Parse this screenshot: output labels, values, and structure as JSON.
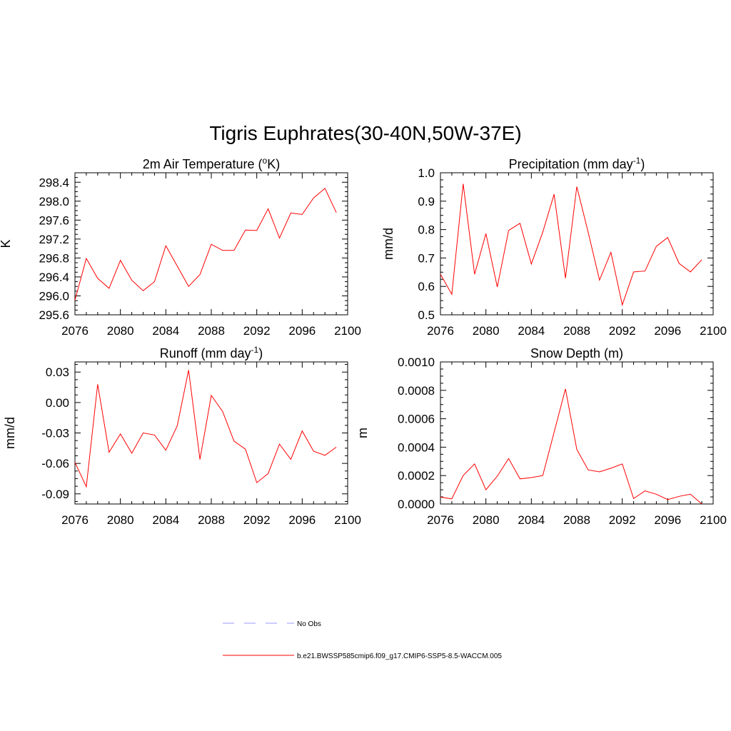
{
  "title": "Tigris Euphrates(30-40N,50W-37E)",
  "colors": {
    "series": "#ff0000",
    "obs": "#9999ff",
    "axis": "#000000"
  },
  "legend": [
    {
      "label": "No Obs",
      "style": "dashed",
      "color": "#9999ff"
    },
    {
      "label": "b.e21.BWSSP585cmip6.f09_g17.CMIP6-SSP5-8.5-WACCM.005",
      "style": "solid",
      "color": "#ff0000"
    }
  ],
  "chart_data": [
    {
      "type": "line",
      "title": "2m Air Temperature (°K)",
      "title_parts": [
        "2m Air Temperature (",
        "o",
        "K)"
      ],
      "ylabel": "K",
      "xlim": [
        2076,
        2100
      ],
      "ylim": [
        295.6,
        298.6
      ],
      "xticks": [
        2076,
        2080,
        2084,
        2088,
        2092,
        2096,
        2100
      ],
      "yticks": [
        "295.6",
        "296.0",
        "296.4",
        "296.8",
        "297.2",
        "297.6",
        "298.0",
        "298.4"
      ],
      "x": [
        2076,
        2077,
        2078,
        2079,
        2080,
        2081,
        2082,
        2083,
        2084,
        2085,
        2086,
        2087,
        2088,
        2089,
        2090,
        2091,
        2092,
        2093,
        2094,
        2095,
        2096,
        2097,
        2098,
        2099
      ],
      "series": [
        {
          "values": [
            295.91,
            296.79,
            296.37,
            296.16,
            296.75,
            296.33,
            296.11,
            296.3,
            297.06,
            296.63,
            296.2,
            296.45,
            297.09,
            296.96,
            296.96,
            297.39,
            297.38,
            297.84,
            297.22,
            297.75,
            297.72,
            298.07,
            298.27,
            297.76
          ]
        }
      ]
    },
    {
      "type": "line",
      "title": "Precipitation (mm day-1)",
      "title_parts": [
        "Precipitation (mm day",
        "-1",
        ")"
      ],
      "ylabel": "mm/d",
      "xlim": [
        2076,
        2100
      ],
      "ylim": [
        0.5,
        1.0
      ],
      "xticks": [
        2076,
        2080,
        2084,
        2088,
        2092,
        2096,
        2100
      ],
      "yticks": [
        "0.5",
        "0.6",
        "0.7",
        "0.8",
        "0.9",
        "1.0"
      ],
      "x": [
        2076,
        2077,
        2078,
        2079,
        2080,
        2081,
        2082,
        2083,
        2084,
        2085,
        2086,
        2087,
        2088,
        2089,
        2090,
        2091,
        2092,
        2093,
        2094,
        2095,
        2096,
        2097,
        2098,
        2099
      ],
      "series": [
        {
          "values": [
            0.643,
            0.572,
            0.961,
            0.643,
            0.786,
            0.598,
            0.797,
            0.822,
            0.679,
            0.791,
            0.924,
            0.629,
            0.951,
            0.791,
            0.622,
            0.72,
            0.535,
            0.651,
            0.654,
            0.741,
            0.772,
            0.681,
            0.651,
            0.694
          ]
        }
      ]
    },
    {
      "type": "line",
      "title": "Runoff (mm day-1)",
      "title_parts": [
        "Runoff (mm day",
        "-1",
        ")"
      ],
      "ylabel": "mm/d",
      "xlim": [
        2076,
        2100
      ],
      "ylim": [
        -0.1,
        0.04
      ],
      "xticks": [
        2076,
        2080,
        2084,
        2088,
        2092,
        2096,
        2100
      ],
      "yticks": [
        "-0.09",
        "-0.06",
        "-0.03",
        "0.00",
        "0.03"
      ],
      "ytick_values": [
        -0.09,
        -0.06,
        -0.03,
        0.0,
        0.03
      ],
      "x": [
        2076,
        2077,
        2078,
        2079,
        2080,
        2081,
        2082,
        2083,
        2084,
        2085,
        2086,
        2087,
        2088,
        2089,
        2090,
        2091,
        2092,
        2093,
        2094,
        2095,
        2096,
        2097,
        2098,
        2099
      ],
      "series": [
        {
          "values": [
            -0.059,
            -0.083,
            0.018,
            -0.049,
            -0.031,
            -0.05,
            -0.03,
            -0.032,
            -0.047,
            -0.023,
            0.032,
            -0.056,
            0.007,
            -0.009,
            -0.038,
            -0.046,
            -0.079,
            -0.07,
            -0.041,
            -0.056,
            -0.028,
            -0.048,
            -0.052,
            -0.044
          ]
        }
      ]
    },
    {
      "type": "line",
      "title": "Snow Depth (m)",
      "title_parts": [
        "Snow Depth (m)",
        "",
        ""
      ],
      "ylabel": "m",
      "xlim": [
        2076,
        2100
      ],
      "ylim": [
        0.0,
        0.001
      ],
      "xticks": [
        2076,
        2080,
        2084,
        2088,
        2092,
        2096,
        2100
      ],
      "yticks": [
        "0.0000",
        "0.0002",
        "0.0004",
        "0.0006",
        "0.0008",
        "0.0010"
      ],
      "x": [
        2076,
        2077,
        2078,
        2079,
        2080,
        2081,
        2082,
        2083,
        2084,
        2085,
        2086,
        2087,
        2088,
        2089,
        2090,
        2091,
        2092,
        2093,
        2094,
        2095,
        2096,
        2097,
        2098,
        2099
      ],
      "series": [
        {
          "values": [
            4.8e-05,
            3.6e-05,
            0.0002,
            0.000282,
            0.0001,
            0.000196,
            0.00032,
            0.000177,
            0.000186,
            0.0002,
            0.000505,
            0.00081,
            0.000384,
            0.00024,
            0.000226,
            0.000252,
            0.000282,
            3.8e-05,
            9.2e-05,
            6.9e-05,
            3.1e-05,
            5.4e-05,
            6.9e-05,
            0.0
          ]
        }
      ]
    }
  ]
}
